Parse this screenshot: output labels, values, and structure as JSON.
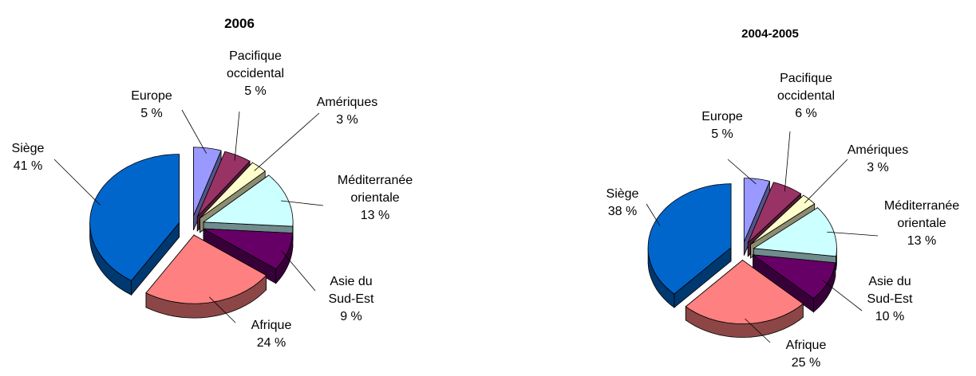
{
  "chart_data": [
    {
      "type": "pie",
      "title": "2006",
      "categories": [
        "Europe",
        "Pacifique occidental",
        "Amériques",
        "Méditerranée orientale",
        "Asie du Sud-Est",
        "Afrique",
        "Siège"
      ],
      "values": [
        5,
        5,
        3,
        13,
        9,
        24,
        41
      ],
      "value_labels": [
        "5 %",
        "5 %",
        "3 %",
        "13 %",
        "9 %",
        "24 %",
        "41 %"
      ],
      "colors": [
        "#9999ff",
        "#993366",
        "#ffffcc",
        "#ccffff",
        "#660066",
        "#ff8080",
        "#0066cc"
      ]
    },
    {
      "type": "pie",
      "title": "2004-2005",
      "categories": [
        "Europe",
        "Pacifique occidental",
        "Amériques",
        "Méditerranée orientale",
        "Asie du Sud-Est",
        "Afrique",
        "Siège"
      ],
      "values": [
        5,
        6,
        3,
        13,
        10,
        25,
        38
      ],
      "value_labels": [
        "5 %",
        "6 %",
        "3 %",
        "13 %",
        "10 %",
        "25 %",
        "38 %"
      ],
      "colors": [
        "#9999ff",
        "#993366",
        "#ffffcc",
        "#ccffff",
        "#660066",
        "#ff8080",
        "#0066cc"
      ]
    }
  ]
}
